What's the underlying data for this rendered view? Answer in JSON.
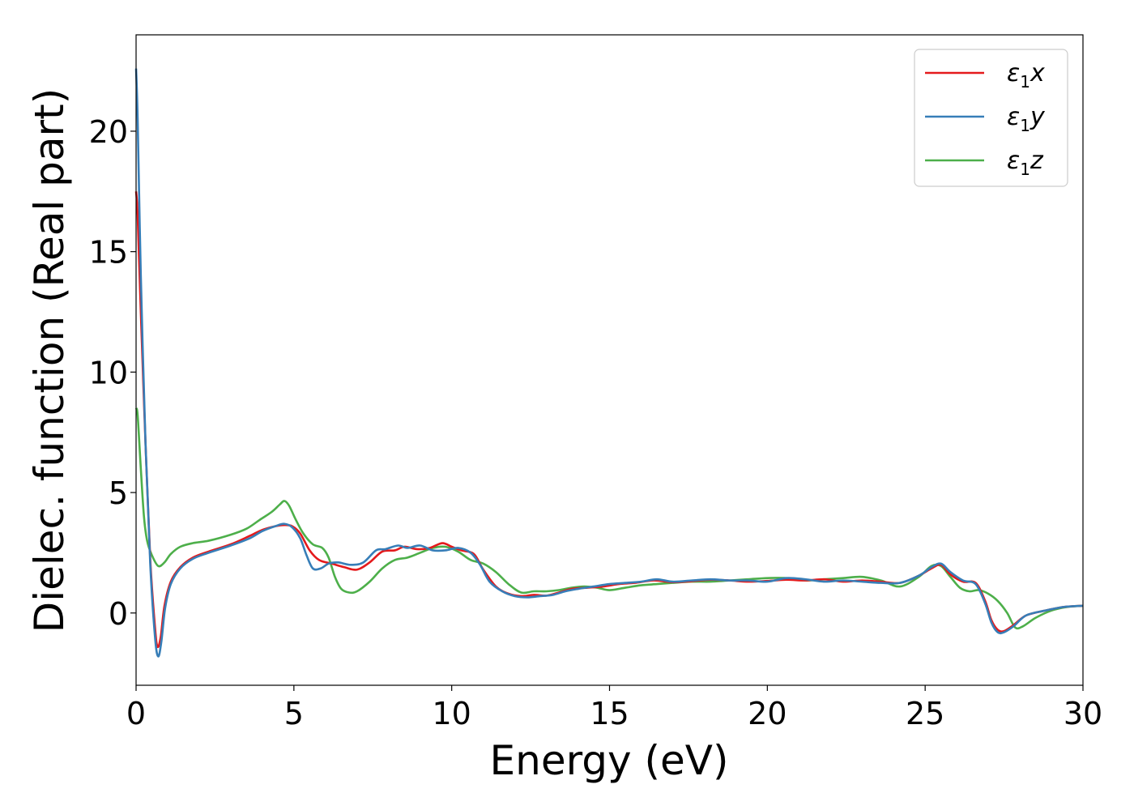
{
  "chart_data": {
    "type": "line",
    "xlabel": "Energy (eV)",
    "ylabel": "Dielec. function (Real part)",
    "xlim": [
      0,
      30
    ],
    "ylim": [
      -3,
      24
    ],
    "xticks": [
      0,
      5,
      10,
      15,
      20,
      25,
      30
    ],
    "xtick_labels": [
      "0",
      "5",
      "10",
      "15",
      "20",
      "25",
      "30"
    ],
    "yticks": [
      0,
      5,
      10,
      15,
      20
    ],
    "ytick_labels": [
      "0",
      "5",
      "10",
      "15",
      "20"
    ],
    "grid": false,
    "legend_position": "top-right",
    "series": [
      {
        "name": "ε1x",
        "label_main": "ε",
        "label_sub": "1",
        "label_var": "x",
        "color": "#e41a1c",
        "x": [
          0.0,
          0.05,
          0.15,
          0.3,
          0.45,
          0.6,
          0.68,
          0.78,
          0.9,
          1.1,
          1.4,
          1.8,
          2.3,
          3.0,
          3.6,
          4.0,
          4.4,
          4.7,
          4.95,
          5.2,
          5.5,
          5.8,
          6.2,
          6.6,
          7.0,
          7.4,
          7.8,
          8.2,
          8.5,
          8.9,
          9.3,
          9.7,
          10.0,
          10.3,
          10.7,
          11.0,
          11.4,
          11.8,
          12.2,
          12.6,
          13.0,
          13.4,
          13.8,
          14.3,
          14.8,
          15.3,
          15.8,
          16.4,
          17.0,
          17.6,
          18.2,
          18.8,
          19.4,
          20.0,
          20.6,
          21.2,
          21.8,
          22.4,
          23.0,
          23.6,
          24.2,
          24.8,
          25.2,
          25.5,
          25.8,
          26.2,
          26.6,
          26.9,
          27.1,
          27.3,
          27.5,
          27.8,
          28.2,
          28.8,
          29.4,
          30.0
        ],
        "values": [
          17.5,
          16.5,
          12.5,
          7.0,
          2.2,
          -0.6,
          -1.4,
          -1.0,
          0.3,
          1.3,
          1.9,
          2.3,
          2.55,
          2.85,
          3.2,
          3.45,
          3.6,
          3.65,
          3.6,
          3.3,
          2.6,
          2.2,
          2.05,
          1.9,
          1.8,
          2.1,
          2.55,
          2.6,
          2.75,
          2.65,
          2.7,
          2.9,
          2.75,
          2.6,
          2.45,
          1.8,
          1.1,
          0.8,
          0.7,
          0.75,
          0.72,
          0.85,
          1.0,
          1.05,
          1.1,
          1.2,
          1.25,
          1.35,
          1.28,
          1.32,
          1.38,
          1.35,
          1.3,
          1.33,
          1.38,
          1.35,
          1.4,
          1.3,
          1.35,
          1.3,
          1.25,
          1.55,
          1.85,
          2.0,
          1.6,
          1.3,
          1.25,
          0.5,
          -0.3,
          -0.7,
          -0.75,
          -0.5,
          -0.1,
          0.1,
          0.25,
          0.3
        ]
      },
      {
        "name": "ε1y",
        "label_main": "ε",
        "label_sub": "1",
        "label_var": "y",
        "color": "#377eb8",
        "x": [
          0.0,
          0.05,
          0.15,
          0.3,
          0.45,
          0.6,
          0.7,
          0.8,
          0.92,
          1.1,
          1.4,
          1.8,
          2.3,
          3.0,
          3.6,
          4.0,
          4.4,
          4.7,
          4.95,
          5.2,
          5.4,
          5.6,
          5.85,
          6.1,
          6.4,
          6.8,
          7.2,
          7.6,
          7.9,
          8.3,
          8.6,
          9.0,
          9.4,
          9.8,
          10.2,
          10.6,
          10.9,
          11.2,
          11.6,
          12.0,
          12.4,
          12.8,
          13.2,
          13.6,
          14.0,
          14.5,
          15.0,
          15.5,
          16.0,
          16.5,
          17.0,
          17.6,
          18.2,
          18.8,
          19.4,
          20.0,
          20.6,
          21.2,
          21.8,
          22.4,
          23.0,
          23.6,
          24.2,
          24.8,
          25.2,
          25.5,
          25.8,
          26.2,
          26.6,
          26.9,
          27.1,
          27.3,
          27.5,
          27.8,
          28.2,
          28.8,
          29.4,
          30.0
        ],
        "values": [
          22.6,
          20.5,
          14.0,
          7.0,
          2.0,
          -1.0,
          -1.8,
          -1.2,
          0.2,
          1.2,
          1.85,
          2.25,
          2.5,
          2.8,
          3.1,
          3.4,
          3.6,
          3.7,
          3.55,
          3.1,
          2.4,
          1.85,
          1.85,
          2.05,
          2.1,
          2.0,
          2.1,
          2.6,
          2.65,
          2.8,
          2.7,
          2.8,
          2.6,
          2.6,
          2.7,
          2.5,
          2.0,
          1.3,
          0.9,
          0.7,
          0.65,
          0.7,
          0.75,
          0.9,
          1.0,
          1.1,
          1.2,
          1.25,
          1.3,
          1.4,
          1.3,
          1.35,
          1.4,
          1.35,
          1.35,
          1.3,
          1.45,
          1.4,
          1.3,
          1.35,
          1.3,
          1.25,
          1.25,
          1.55,
          1.9,
          2.05,
          1.7,
          1.35,
          1.2,
          0.4,
          -0.4,
          -0.8,
          -0.8,
          -0.55,
          -0.1,
          0.1,
          0.25,
          0.3
        ]
      },
      {
        "name": "ε1z",
        "label_main": "ε",
        "label_sub": "1",
        "label_var": "z",
        "color": "#4daf4a",
        "x": [
          0.0,
          0.05,
          0.15,
          0.25,
          0.35,
          0.5,
          0.7,
          0.9,
          1.1,
          1.4,
          1.8,
          2.3,
          3.0,
          3.5,
          3.9,
          4.3,
          4.55,
          4.7,
          4.85,
          5.05,
          5.3,
          5.6,
          5.9,
          6.1,
          6.3,
          6.5,
          6.75,
          7.0,
          7.4,
          7.8,
          8.2,
          8.6,
          9.0,
          9.4,
          9.8,
          10.2,
          10.6,
          11.0,
          11.4,
          11.8,
          12.2,
          12.6,
          13.0,
          13.4,
          13.8,
          14.2,
          14.6,
          15.0,
          15.5,
          16.0,
          16.5,
          17.0,
          17.6,
          18.2,
          18.8,
          19.4,
          20.0,
          20.6,
          21.2,
          21.8,
          22.4,
          23.0,
          23.6,
          24.2,
          24.8,
          25.2,
          25.5,
          25.8,
          26.1,
          26.4,
          26.7,
          27.0,
          27.3,
          27.6,
          27.85,
          28.1,
          28.5,
          29.0,
          29.5,
          30.0
        ],
        "values": [
          8.5,
          8.2,
          6.0,
          4.0,
          3.0,
          2.4,
          1.95,
          2.1,
          2.45,
          2.75,
          2.9,
          3.0,
          3.25,
          3.5,
          3.85,
          4.2,
          4.5,
          4.65,
          4.45,
          3.9,
          3.3,
          2.85,
          2.7,
          2.3,
          1.5,
          1.0,
          0.85,
          0.9,
          1.3,
          1.85,
          2.2,
          2.3,
          2.5,
          2.7,
          2.75,
          2.55,
          2.2,
          2.05,
          1.7,
          1.2,
          0.85,
          0.9,
          0.9,
          0.95,
          1.05,
          1.1,
          1.05,
          0.95,
          1.05,
          1.15,
          1.2,
          1.25,
          1.3,
          1.3,
          1.35,
          1.4,
          1.45,
          1.45,
          1.35,
          1.4,
          1.45,
          1.5,
          1.35,
          1.1,
          1.5,
          1.95,
          1.95,
          1.5,
          1.05,
          0.9,
          0.95,
          0.8,
          0.5,
          0.0,
          -0.6,
          -0.55,
          -0.2,
          0.1,
          0.25,
          0.3
        ]
      }
    ]
  }
}
